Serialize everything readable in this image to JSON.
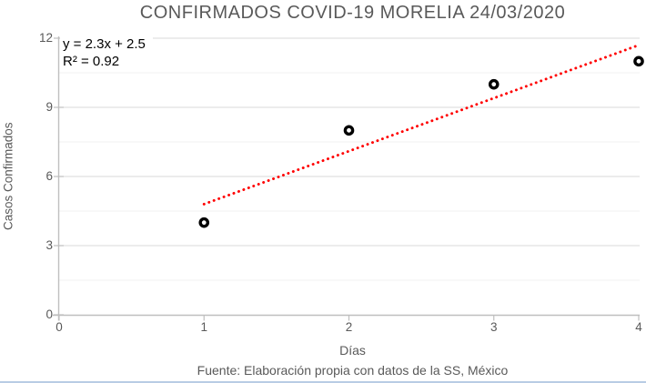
{
  "chart_data": {
    "type": "scatter",
    "title": "CONFIRMADOS COVID-19 MORELIA 24/03/2020",
    "x": [
      1,
      2,
      3,
      4
    ],
    "y": [
      4,
      8,
      10,
      11
    ],
    "xlabel": "Días",
    "ylabel": "Casos Confirmados",
    "xlim": [
      0,
      4
    ],
    "ylim": [
      0,
      12
    ],
    "x_ticks": [
      0,
      1,
      2,
      3,
      4
    ],
    "y_ticks": [
      0,
      3,
      6,
      9,
      12
    ],
    "y_minor_tick_interval": 1.5,
    "grid": "horizontal-major-and-minor",
    "legend": "none",
    "marker": {
      "shape": "open-circle",
      "fill": "#ffffff",
      "stroke": "#000000"
    },
    "trendline": {
      "type": "linear",
      "equation": "y = 2.3x + 2.5",
      "r_squared_label": "R² = 0.92",
      "slope": 2.3,
      "intercept": 2.5,
      "r2": 0.92,
      "color": "#ff0000",
      "style": "dotted",
      "x_start": 1.0,
      "x_end": 3.99
    }
  },
  "footer": "Fuente: Elaboración propia con datos de la SS, México",
  "colors": {
    "title_text": "#595959",
    "axis_text": "#595959",
    "annotation_text": "#000000",
    "axis_line": "#bfbfbf",
    "gridline_major": "#d9d9d9",
    "gridline_minor": "#f0f0f0",
    "trendline": "#ff0000",
    "marker_stroke": "#000000",
    "marker_fill": "#ffffff",
    "bottom_border": "#b8cce4",
    "background": "#ffffff"
  }
}
